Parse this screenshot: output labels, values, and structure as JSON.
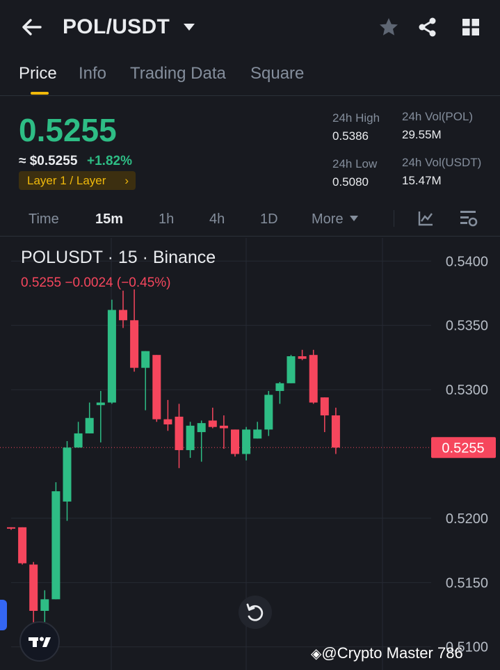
{
  "header": {
    "pair": "POL/USDT",
    "icons": [
      "back-arrow-icon",
      "caret-down-icon",
      "star-icon",
      "share-icon",
      "grid-icon"
    ]
  },
  "tabs": [
    "Price",
    "Info",
    "Trading Data",
    "Square"
  ],
  "price": {
    "last": "0.5255",
    "usd": "≈ $0.5255",
    "change": "+1.82%",
    "tag": "Layer 1 / Layer",
    "high_label": "24h High",
    "high": "0.5386",
    "low_label": "24h Low",
    "low": "0.5080",
    "vol_base_label": "24h Vol(POL)",
    "vol_base": "29.55M",
    "vol_quote_label": "24h Vol(USDT)",
    "vol_quote": "15.47M"
  },
  "intervals": [
    "Time",
    "15m",
    "1h",
    "4h",
    "1D",
    "More"
  ],
  "colors": {
    "up": "#2ebd85",
    "down": "#f6465d",
    "accent": "#f0b90b",
    "bg": "#181a20"
  },
  "chart_header": {
    "title": "POLUSDT · 15 · Binance",
    "ohlc_line": "0.5255  −0.0024 (−0.45%)"
  },
  "watermark": "@Crypto Master 786",
  "chart_data": {
    "type": "candlestick",
    "ylim": [
      0.5082,
      0.5418
    ],
    "y_ticks": [
      "0.5400",
      "0.5350",
      "0.5300",
      "0.5200",
      "0.5150",
      "0.5100"
    ],
    "last_price_label": "0.5255",
    "last_price": 0.5255,
    "candles": [
      {
        "o": 0.5193,
        "h": 0.5193,
        "l": 0.5191,
        "c": 0.5192
      },
      {
        "o": 0.5193,
        "h": 0.5193,
        "l": 0.5164,
        "c": 0.5165
      },
      {
        "o": 0.5164,
        "h": 0.5166,
        "l": 0.5111,
        "c": 0.5128
      },
      {
        "o": 0.5128,
        "h": 0.5144,
        "l": 0.5118,
        "c": 0.5137
      },
      {
        "o": 0.5137,
        "h": 0.5228,
        "l": 0.5137,
        "c": 0.5221
      },
      {
        "o": 0.5213,
        "h": 0.526,
        "l": 0.5198,
        "c": 0.5255
      },
      {
        "o": 0.5255,
        "h": 0.5275,
        "l": 0.5255,
        "c": 0.5266
      },
      {
        "o": 0.5266,
        "h": 0.529,
        "l": 0.5266,
        "c": 0.5278
      },
      {
        "o": 0.5288,
        "h": 0.5299,
        "l": 0.5259,
        "c": 0.529
      },
      {
        "o": 0.529,
        "h": 0.537,
        "l": 0.5289,
        "c": 0.5362
      },
      {
        "o": 0.5362,
        "h": 0.5377,
        "l": 0.5348,
        "c": 0.5354
      },
      {
        "o": 0.5354,
        "h": 0.5378,
        "l": 0.5314,
        "c": 0.5317
      },
      {
        "o": 0.5317,
        "h": 0.533,
        "l": 0.5284,
        "c": 0.533
      },
      {
        "o": 0.5327,
        "h": 0.5327,
        "l": 0.5275,
        "c": 0.5277
      },
      {
        "o": 0.5277,
        "h": 0.5292,
        "l": 0.5268,
        "c": 0.5273
      },
      {
        "o": 0.5279,
        "h": 0.5289,
        "l": 0.5239,
        "c": 0.5253
      },
      {
        "o": 0.5253,
        "h": 0.5275,
        "l": 0.5247,
        "c": 0.5272
      },
      {
        "o": 0.5267,
        "h": 0.5276,
        "l": 0.5244,
        "c": 0.5274
      },
      {
        "o": 0.5276,
        "h": 0.5286,
        "l": 0.527,
        "c": 0.5271
      },
      {
        "o": 0.5272,
        "h": 0.528,
        "l": 0.5254,
        "c": 0.527
      },
      {
        "o": 0.5269,
        "h": 0.5269,
        "l": 0.5248,
        "c": 0.525
      },
      {
        "o": 0.525,
        "h": 0.5271,
        "l": 0.5245,
        "c": 0.5269
      },
      {
        "o": 0.5262,
        "h": 0.5275,
        "l": 0.5262,
        "c": 0.5269
      },
      {
        "o": 0.5269,
        "h": 0.5299,
        "l": 0.5264,
        "c": 0.5296
      },
      {
        "o": 0.5299,
        "h": 0.5306,
        "l": 0.5289,
        "c": 0.5305
      },
      {
        "o": 0.5305,
        "h": 0.5327,
        "l": 0.5305,
        "c": 0.5326
      },
      {
        "o": 0.5326,
        "h": 0.5331,
        "l": 0.5323,
        "c": 0.5324
      },
      {
        "o": 0.5327,
        "h": 0.5331,
        "l": 0.5289,
        "c": 0.529
      },
      {
        "o": 0.5294,
        "h": 0.5294,
        "l": 0.5267,
        "c": 0.528
      },
      {
        "o": 0.528,
        "h": 0.5286,
        "l": 0.525,
        "c": 0.5255
      }
    ]
  }
}
